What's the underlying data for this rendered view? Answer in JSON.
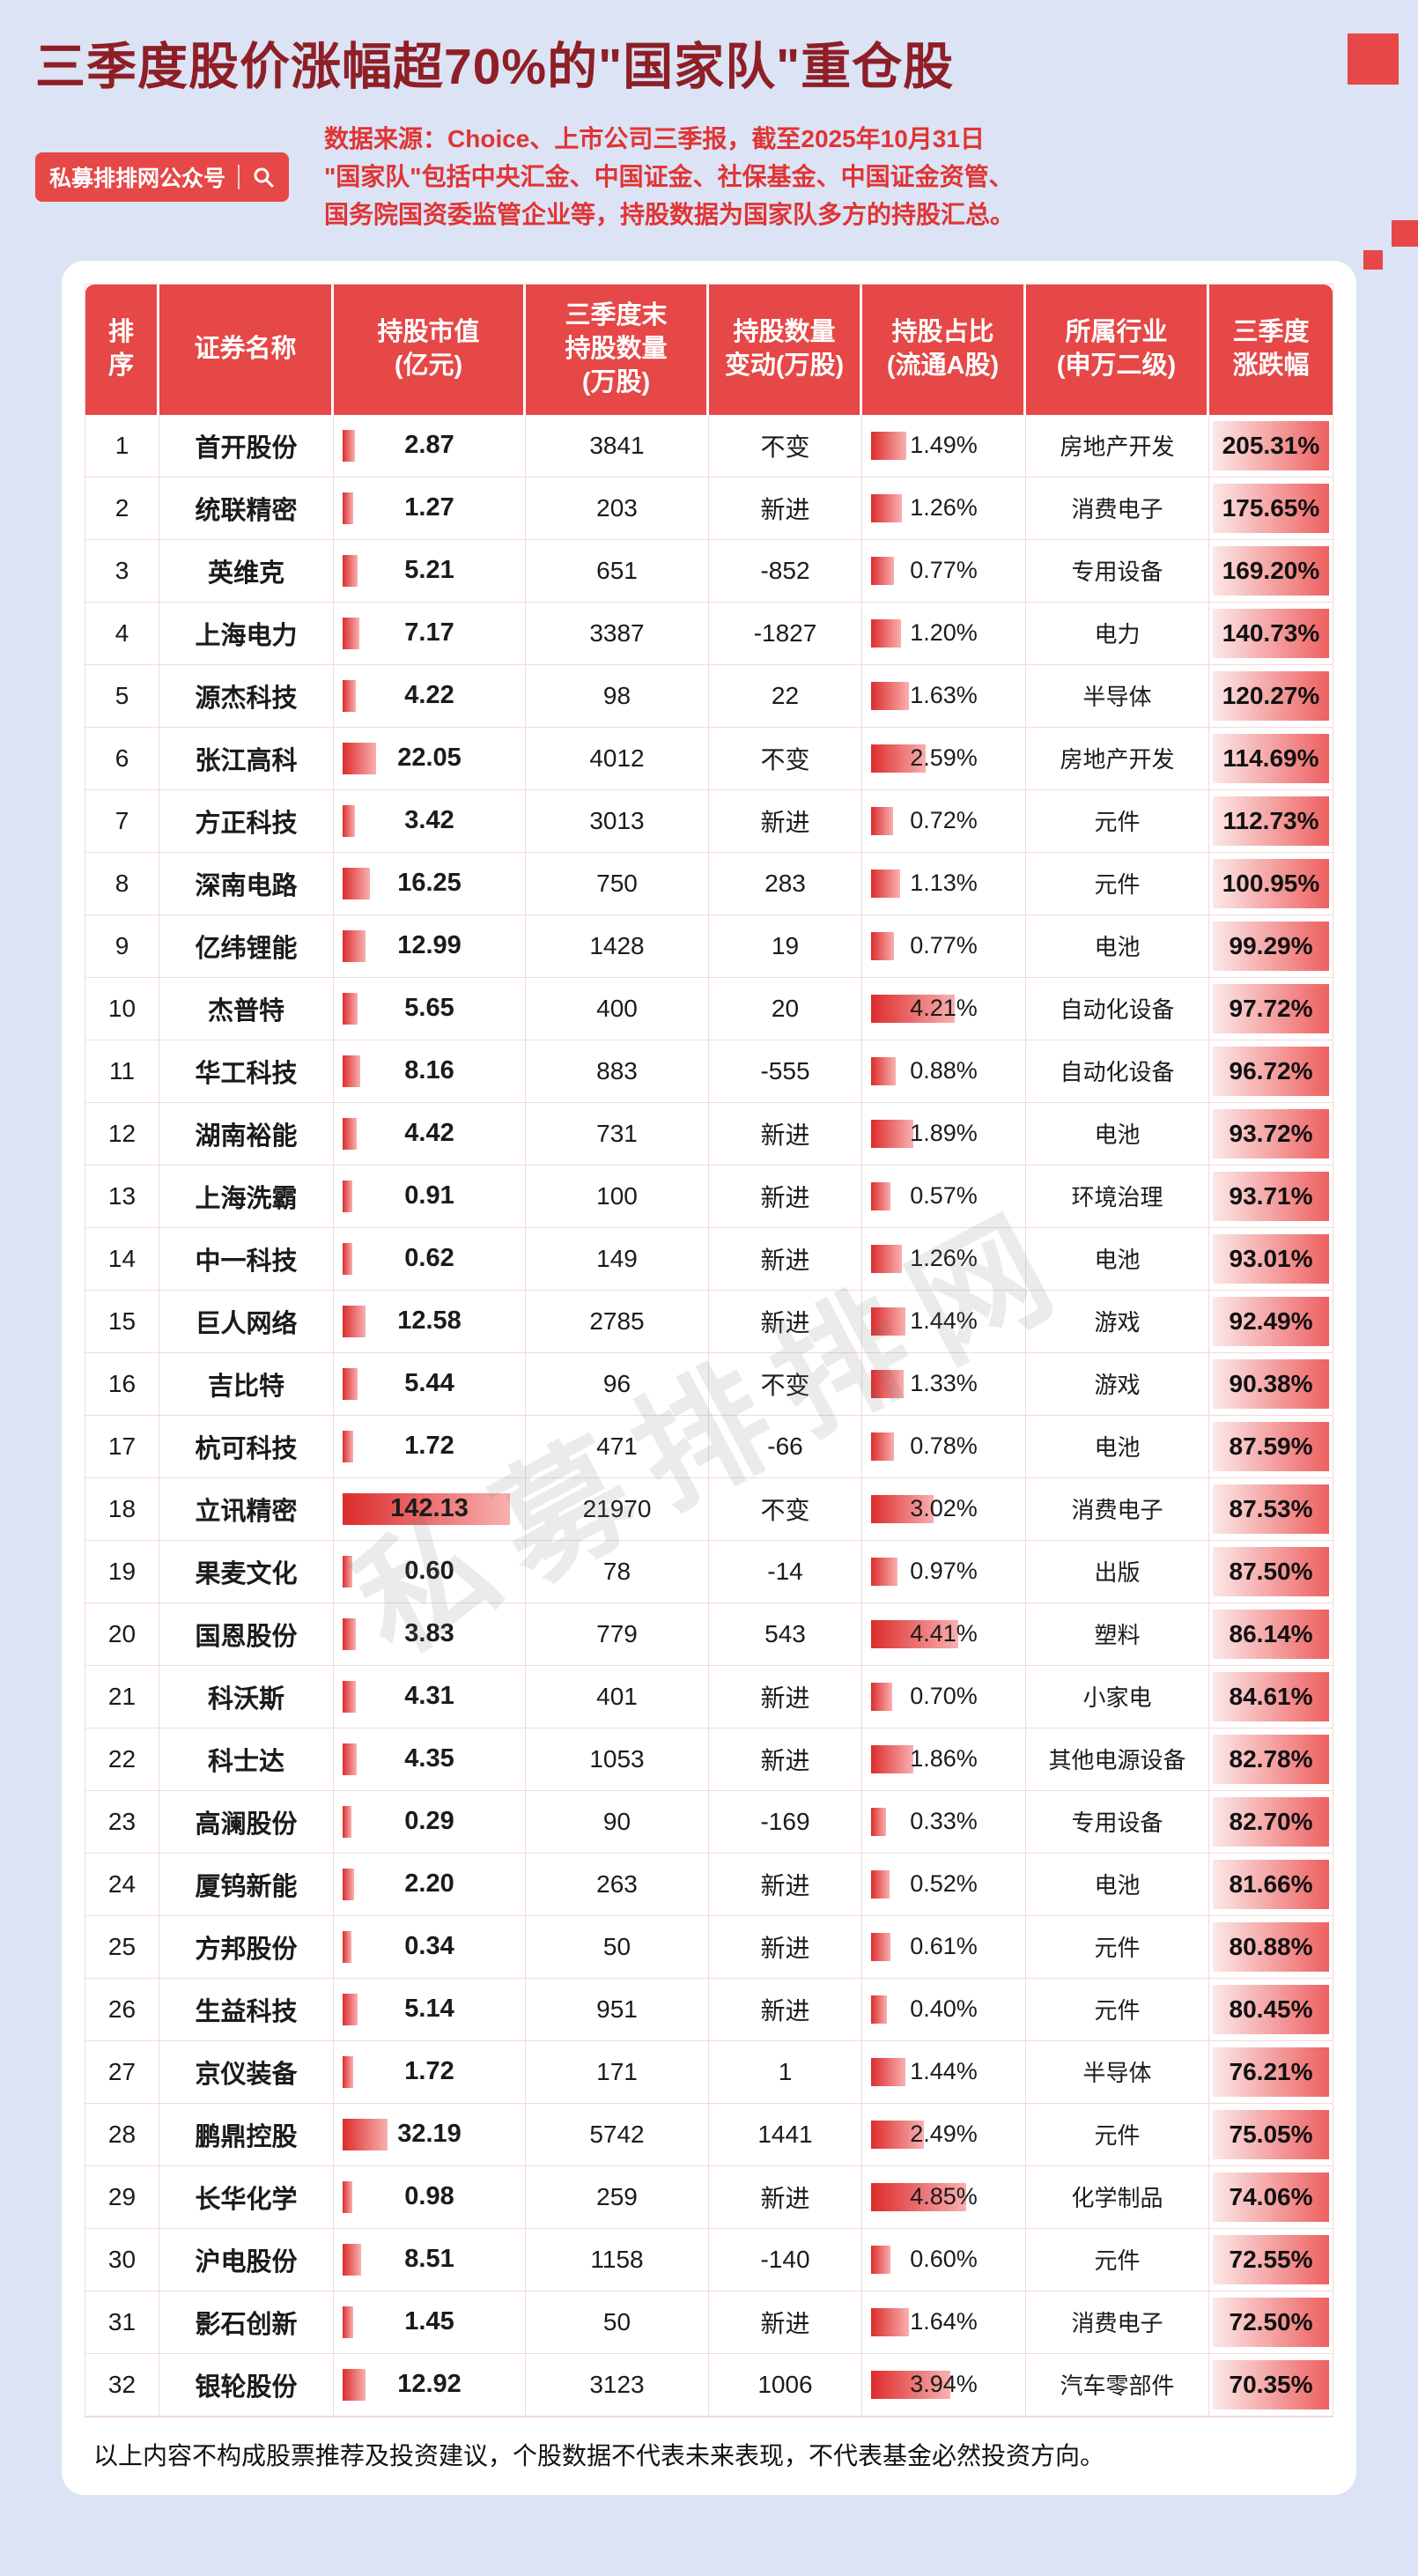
{
  "page": {
    "title": "三季度股价涨幅超70%的\"国家队\"重仓股",
    "badge_label": "私募排排网公众号",
    "source_line1": "数据来源：Choice、上市公司三季报，截至2025年10月31日",
    "source_line2": "\"国家队\"包括中央汇金、中国证金、社保基金、中国证金资管、",
    "source_line3": "国务院国资委监管企业等，持股数据为国家队多方的持股汇总。",
    "watermark": "私募排排网",
    "disclaimer": "以上内容不构成股票推荐及投资建议，个股数据不代表未来表现，不代表基金必然投资方向。"
  },
  "colors": {
    "background": "#dbe3f5",
    "title": "#8e1f26",
    "accent_red": "#e64747",
    "source_text": "#e03434",
    "bar_gradient_start": "#dd2c2c",
    "bar_gradient_end": "#f9b0b0",
    "gain_gradient_start": "#fce8e8",
    "gain_gradient_end": "#ee6060"
  },
  "chart_data": {
    "type": "table",
    "title": "三季度股价涨幅超70%的\"国家队\"重仓股",
    "columns": [
      "排\n序",
      "证券名称",
      "持股市值\n(亿元)",
      "三季度末\n持股数量\n(万股)",
      "持股数量\n变动(万股)",
      "持股占比\n(流通A股)",
      "所属行业\n(申万二级)",
      "三季度\n涨跌幅"
    ],
    "max_market_value": 142.13,
    "max_ratio_pct": 4.85,
    "max_gain_pct": 205.31,
    "rows": [
      {
        "rank": 1,
        "name": "首开股份",
        "market_value": "2.87",
        "shares": "3841",
        "change": "不变",
        "ratio": "1.49%",
        "industry": "房地产开发",
        "gain": "205.31%"
      },
      {
        "rank": 2,
        "name": "统联精密",
        "market_value": "1.27",
        "shares": "203",
        "change": "新进",
        "ratio": "1.26%",
        "industry": "消费电子",
        "gain": "175.65%"
      },
      {
        "rank": 3,
        "name": "英维克",
        "market_value": "5.21",
        "shares": "651",
        "change": "-852",
        "ratio": "0.77%",
        "industry": "专用设备",
        "gain": "169.20%"
      },
      {
        "rank": 4,
        "name": "上海电力",
        "market_value": "7.17",
        "shares": "3387",
        "change": "-1827",
        "ratio": "1.20%",
        "industry": "电力",
        "gain": "140.73%"
      },
      {
        "rank": 5,
        "name": "源杰科技",
        "market_value": "4.22",
        "shares": "98",
        "change": "22",
        "ratio": "1.63%",
        "industry": "半导体",
        "gain": "120.27%"
      },
      {
        "rank": 6,
        "name": "张江高科",
        "market_value": "22.05",
        "shares": "4012",
        "change": "不变",
        "ratio": "2.59%",
        "industry": "房地产开发",
        "gain": "114.69%"
      },
      {
        "rank": 7,
        "name": "方正科技",
        "market_value": "3.42",
        "shares": "3013",
        "change": "新进",
        "ratio": "0.72%",
        "industry": "元件",
        "gain": "112.73%"
      },
      {
        "rank": 8,
        "name": "深南电路",
        "market_value": "16.25",
        "shares": "750",
        "change": "283",
        "ratio": "1.13%",
        "industry": "元件",
        "gain": "100.95%"
      },
      {
        "rank": 9,
        "name": "亿纬锂能",
        "market_value": "12.99",
        "shares": "1428",
        "change": "19",
        "ratio": "0.77%",
        "industry": "电池",
        "gain": "99.29%"
      },
      {
        "rank": 10,
        "name": "杰普特",
        "market_value": "5.65",
        "shares": "400",
        "change": "20",
        "ratio": "4.21%",
        "industry": "自动化设备",
        "gain": "97.72%"
      },
      {
        "rank": 11,
        "name": "华工科技",
        "market_value": "8.16",
        "shares": "883",
        "change": "-555",
        "ratio": "0.88%",
        "industry": "自动化设备",
        "gain": "96.72%"
      },
      {
        "rank": 12,
        "name": "湖南裕能",
        "market_value": "4.42",
        "shares": "731",
        "change": "新进",
        "ratio": "1.89%",
        "industry": "电池",
        "gain": "93.72%"
      },
      {
        "rank": 13,
        "name": "上海洗霸",
        "market_value": "0.91",
        "shares": "100",
        "change": "新进",
        "ratio": "0.57%",
        "industry": "环境治理",
        "gain": "93.71%"
      },
      {
        "rank": 14,
        "name": "中一科技",
        "market_value": "0.62",
        "shares": "149",
        "change": "新进",
        "ratio": "1.26%",
        "industry": "电池",
        "gain": "93.01%"
      },
      {
        "rank": 15,
        "name": "巨人网络",
        "market_value": "12.58",
        "shares": "2785",
        "change": "新进",
        "ratio": "1.44%",
        "industry": "游戏",
        "gain": "92.49%"
      },
      {
        "rank": 16,
        "name": "吉比特",
        "market_value": "5.44",
        "shares": "96",
        "change": "不变",
        "ratio": "1.33%",
        "industry": "游戏",
        "gain": "90.38%"
      },
      {
        "rank": 17,
        "name": "杭可科技",
        "market_value": "1.72",
        "shares": "471",
        "change": "-66",
        "ratio": "0.78%",
        "industry": "电池",
        "gain": "87.59%"
      },
      {
        "rank": 18,
        "name": "立讯精密",
        "market_value": "142.13",
        "shares": "21970",
        "change": "不变",
        "ratio": "3.02%",
        "industry": "消费电子",
        "gain": "87.53%"
      },
      {
        "rank": 19,
        "name": "果麦文化",
        "market_value": "0.60",
        "shares": "78",
        "change": "-14",
        "ratio": "0.97%",
        "industry": "出版",
        "gain": "87.50%"
      },
      {
        "rank": 20,
        "name": "国恩股份",
        "market_value": "3.83",
        "shares": "779",
        "change": "543",
        "ratio": "4.41%",
        "industry": "塑料",
        "gain": "86.14%"
      },
      {
        "rank": 21,
        "name": "科沃斯",
        "market_value": "4.31",
        "shares": "401",
        "change": "新进",
        "ratio": "0.70%",
        "industry": "小家电",
        "gain": "84.61%"
      },
      {
        "rank": 22,
        "name": "科士达",
        "market_value": "4.35",
        "shares": "1053",
        "change": "新进",
        "ratio": "1.86%",
        "industry": "其他电源设备",
        "gain": "82.78%"
      },
      {
        "rank": 23,
        "name": "高澜股份",
        "market_value": "0.29",
        "shares": "90",
        "change": "-169",
        "ratio": "0.33%",
        "industry": "专用设备",
        "gain": "82.70%"
      },
      {
        "rank": 24,
        "name": "厦钨新能",
        "market_value": "2.20",
        "shares": "263",
        "change": "新进",
        "ratio": "0.52%",
        "industry": "电池",
        "gain": "81.66%"
      },
      {
        "rank": 25,
        "name": "方邦股份",
        "market_value": "0.34",
        "shares": "50",
        "change": "新进",
        "ratio": "0.61%",
        "industry": "元件",
        "gain": "80.88%"
      },
      {
        "rank": 26,
        "name": "生益科技",
        "market_value": "5.14",
        "shares": "951",
        "change": "新进",
        "ratio": "0.40%",
        "industry": "元件",
        "gain": "80.45%"
      },
      {
        "rank": 27,
        "name": "京仪装备",
        "market_value": "1.72",
        "shares": "171",
        "change": "1",
        "ratio": "1.44%",
        "industry": "半导体",
        "gain": "76.21%"
      },
      {
        "rank": 28,
        "name": "鹏鼎控股",
        "market_value": "32.19",
        "shares": "5742",
        "change": "1441",
        "ratio": "2.49%",
        "industry": "元件",
        "gain": "75.05%"
      },
      {
        "rank": 29,
        "name": "长华化学",
        "market_value": "0.98",
        "shares": "259",
        "change": "新进",
        "ratio": "4.85%",
        "industry": "化学制品",
        "gain": "74.06%"
      },
      {
        "rank": 30,
        "name": "沪电股份",
        "market_value": "8.51",
        "shares": "1158",
        "change": "-140",
        "ratio": "0.60%",
        "industry": "元件",
        "gain": "72.55%"
      },
      {
        "rank": 31,
        "name": "影石创新",
        "market_value": "1.45",
        "shares": "50",
        "change": "新进",
        "ratio": "1.64%",
        "industry": "消费电子",
        "gain": "72.50%"
      },
      {
        "rank": 32,
        "name": "银轮股份",
        "market_value": "12.92",
        "shares": "3123",
        "change": "1006",
        "ratio": "3.94%",
        "industry": "汽车零部件",
        "gain": "70.35%"
      }
    ]
  }
}
